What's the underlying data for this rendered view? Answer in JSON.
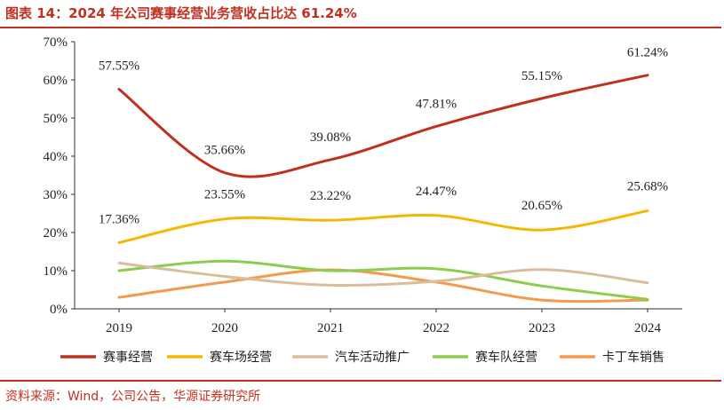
{
  "header": {
    "title": "图表 14：2024 年公司赛事经营业务营收占比达 61.24%"
  },
  "footer": {
    "source": "资料来源：Wind，公司公告，华源证券研究所"
  },
  "chart_data": {
    "type": "line",
    "x": [
      "2019",
      "2020",
      "2021",
      "2022",
      "2023",
      "2024"
    ],
    "ylim": [
      0,
      70
    ],
    "yticks": [
      "0%",
      "10%",
      "20%",
      "30%",
      "40%",
      "50%",
      "60%",
      "70%"
    ],
    "legend_position": "bottom",
    "grid": false,
    "series": [
      {
        "name": "赛事经营",
        "color": "#c0301f",
        "values": [
          57.55,
          35.66,
          39.08,
          47.81,
          55.15,
          61.24
        ],
        "labels": [
          "57.55%",
          "35.66%",
          "39.08%",
          "47.81%",
          "55.15%",
          "61.24%"
        ]
      },
      {
        "name": "赛车场经营",
        "color": "#f5b800",
        "values": [
          17.36,
          23.55,
          23.22,
          24.47,
          20.65,
          25.68
        ],
        "labels": [
          "17.36%",
          "23.55%",
          "23.22%",
          "24.47%",
          "20.65%",
          "25.68%"
        ]
      },
      {
        "name": "汽车活动推广",
        "color": "#d9bd9b",
        "values": [
          12.0,
          8.5,
          6.2,
          7.2,
          10.3,
          6.8
        ],
        "labels": []
      },
      {
        "name": "赛车队经营",
        "color": "#8ccc4e",
        "values": [
          10.0,
          12.5,
          10.0,
          10.5,
          6.0,
          2.5
        ],
        "labels": []
      },
      {
        "name": "卡丁车销售",
        "color": "#f39a4e",
        "values": [
          3.0,
          7.0,
          10.2,
          7.0,
          2.3,
          2.3
        ],
        "labels": []
      }
    ]
  }
}
